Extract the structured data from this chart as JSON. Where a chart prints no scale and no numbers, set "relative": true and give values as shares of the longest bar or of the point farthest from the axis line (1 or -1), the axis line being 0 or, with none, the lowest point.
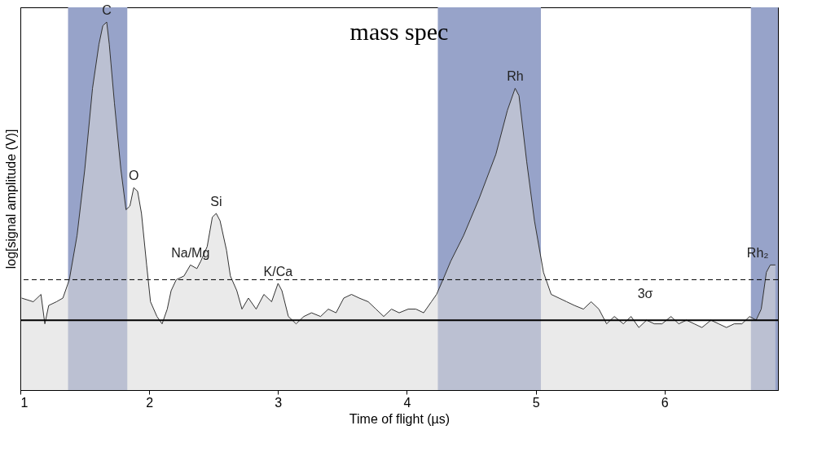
{
  "chart_data": {
    "type": "area",
    "title": "mass spec",
    "xlabel": "Time of flight (µs)",
    "ylabel": "log[signal amplitude (V)]",
    "relative": true,
    "xlim": [
      1,
      6.88
    ],
    "xticks": [
      1,
      2,
      3,
      4,
      5,
      6
    ],
    "grid": false,
    "series": [
      {
        "color": "#d9d9d9",
        "x": [
          1.01,
          1.1,
          1.16,
          1.19,
          1.22,
          1.28,
          1.33,
          1.38,
          1.44,
          1.5,
          1.56,
          1.61,
          1.64,
          1.67,
          1.69,
          1.73,
          1.78,
          1.82,
          1.85,
          1.88,
          1.91,
          1.94,
          1.98,
          2.01,
          2.06,
          2.1,
          2.14,
          2.17,
          2.21,
          2.27,
          2.32,
          2.37,
          2.4,
          2.45,
          2.49,
          2.52,
          2.55,
          2.6,
          2.63,
          2.68,
          2.72,
          2.77,
          2.83,
          2.89,
          2.95,
          3.0,
          3.03,
          3.08,
          3.14,
          3.2,
          3.26,
          3.33,
          3.39,
          3.45,
          3.51,
          3.57,
          3.63,
          3.7,
          3.76,
          3.82,
          3.88,
          3.94,
          4.01,
          4.07,
          4.13,
          4.19,
          4.23,
          4.28,
          4.34,
          4.44,
          4.56,
          4.69,
          4.78,
          4.84,
          4.87,
          4.93,
          4.99,
          5.06,
          5.12,
          5.18,
          5.24,
          5.3,
          5.37,
          5.43,
          5.49,
          5.55,
          5.61,
          5.68,
          5.74,
          5.8,
          5.86,
          5.92,
          5.98,
          6.05,
          6.11,
          6.17,
          6.23,
          6.29,
          6.36,
          6.42,
          6.48,
          6.54,
          6.6,
          6.66,
          6.71,
          6.75,
          6.79,
          6.82,
          6.86
        ],
        "values": [
          0.25,
          0.24,
          0.26,
          0.18,
          0.23,
          0.24,
          0.25,
          0.3,
          0.42,
          0.6,
          0.82,
          0.94,
          0.99,
          1.0,
          0.94,
          0.78,
          0.6,
          0.49,
          0.5,
          0.55,
          0.54,
          0.48,
          0.34,
          0.24,
          0.2,
          0.18,
          0.22,
          0.27,
          0.3,
          0.31,
          0.34,
          0.33,
          0.35,
          0.39,
          0.47,
          0.48,
          0.46,
          0.38,
          0.31,
          0.27,
          0.22,
          0.25,
          0.22,
          0.26,
          0.24,
          0.29,
          0.27,
          0.2,
          0.18,
          0.2,
          0.21,
          0.2,
          0.22,
          0.21,
          0.25,
          0.26,
          0.25,
          0.24,
          0.22,
          0.2,
          0.22,
          0.21,
          0.22,
          0.22,
          0.21,
          0.24,
          0.26,
          0.3,
          0.35,
          0.42,
          0.52,
          0.64,
          0.76,
          0.82,
          0.8,
          0.62,
          0.46,
          0.32,
          0.26,
          0.25,
          0.24,
          0.23,
          0.22,
          0.24,
          0.22,
          0.18,
          0.2,
          0.18,
          0.2,
          0.17,
          0.19,
          0.18,
          0.18,
          0.2,
          0.18,
          0.19,
          0.18,
          0.17,
          0.19,
          0.18,
          0.17,
          0.18,
          0.18,
          0.2,
          0.19,
          0.22,
          0.32,
          0.34,
          0.34
        ]
      }
    ],
    "ref_lines": [
      {
        "axis": "y",
        "value": 0.19,
        "color": "#000000",
        "line_style": "solid"
      },
      {
        "axis": "y",
        "value": 0.3,
        "color": "#000000",
        "line_style": "dashed"
      }
    ],
    "bands": [
      {
        "axis": "x",
        "from": 1.37,
        "to": 1.83,
        "color": "#97a3c9"
      },
      {
        "axis": "x",
        "from": 4.24,
        "to": 5.04,
        "color": "#97a3c9"
      },
      {
        "axis": "x",
        "from": 6.67,
        "to": 6.88,
        "color": "#97a3c9"
      }
    ],
    "annotations": [
      {
        "text": "C",
        "x": 1.67,
        "y": 1.0
      },
      {
        "text": "O",
        "x": 1.88,
        "y": 0.55
      },
      {
        "text": "Na/Mg",
        "x": 2.32,
        "y": 0.34
      },
      {
        "text": "Si",
        "x": 2.52,
        "y": 0.48
      },
      {
        "text": "K/Ca",
        "x": 3.0,
        "y": 0.29
      },
      {
        "text": "Rh",
        "x": 4.84,
        "y": 0.82
      },
      {
        "text": "Rh₂",
        "x": 6.82,
        "y": 0.34
      },
      {
        "text": "3σ",
        "x": 5.85,
        "y": 0.3
      }
    ]
  }
}
